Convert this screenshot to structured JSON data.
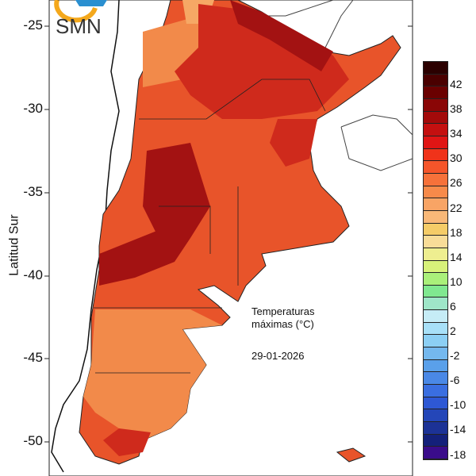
{
  "logo": {
    "text": "SMN"
  },
  "axis": {
    "ylabel": "Latitud Sur",
    "yticks": [
      "-25",
      "-30",
      "-35",
      "-40",
      "-45",
      "-50"
    ]
  },
  "annotation": {
    "title_line1": "Temperaturas",
    "title_line2": "máximas (°C)",
    "date": "29-01-2026"
  },
  "colorbar": {
    "labels": [
      "42",
      "38",
      "34",
      "30",
      "26",
      "22",
      "18",
      "14",
      "10",
      "6",
      "2",
      "-2",
      "-6",
      "-10",
      "-14",
      "-18"
    ],
    "colors": [
      "#2b0000",
      "#4a0000",
      "#6a0000",
      "#8a0606",
      "#a30a0a",
      "#c41010",
      "#e01515",
      "#f0331a",
      "#f5552a",
      "#f6713a",
      "#f78a4a",
      "#f8a465",
      "#f9b878",
      "#f5cc68",
      "#f8dc98",
      "#eeee90",
      "#d8f27a",
      "#aaf07a",
      "#80e890",
      "#9fe6c8",
      "#c6ecf6",
      "#a8e0f8",
      "#8ccff4",
      "#74b8ee",
      "#5aa0ea",
      "#4a88e6",
      "#3a6ee0",
      "#2e58d4",
      "#2446b8",
      "#1c3296",
      "#14207a",
      "#3a0c8a"
    ]
  },
  "map": {
    "colors": {
      "hot": "#e8542a",
      "hotter": "#cf2a1c",
      "hottest": "#a31212",
      "warm": "#f28a4a",
      "mild": "#f6a865"
    }
  }
}
